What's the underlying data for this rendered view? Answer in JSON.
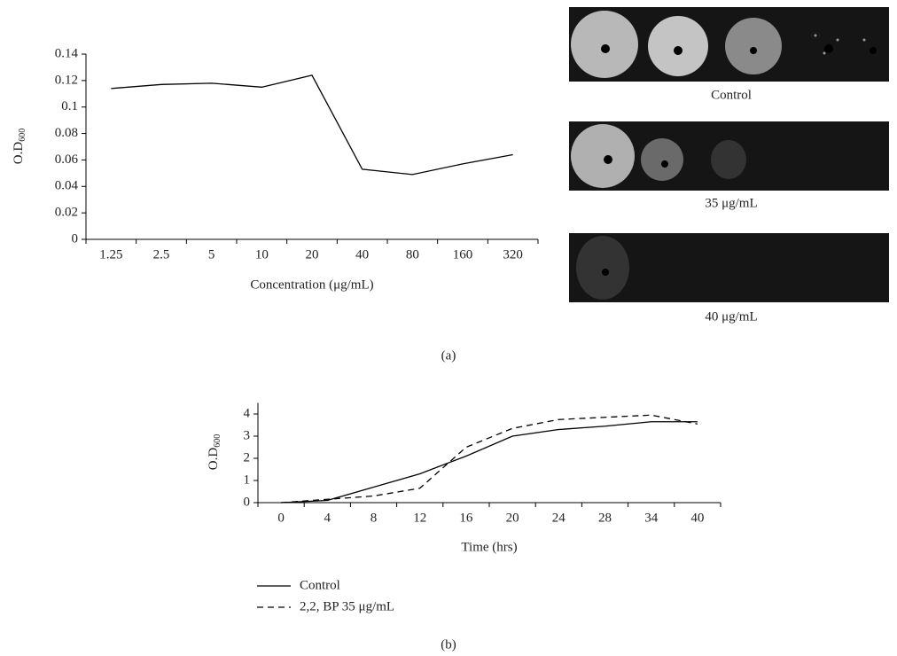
{
  "chart_data": [
    {
      "type": "line",
      "x_label": "Concentration (μg/mL)",
      "y_label": "O.D",
      "y_label_sub": "600",
      "categories": [
        "1.25",
        "2.5",
        "5",
        "10",
        "20",
        "40",
        "80",
        "160",
        "320"
      ],
      "values": [
        0.114,
        0.117,
        0.118,
        0.115,
        0.124,
        0.053,
        0.049,
        0.057,
        0.064
      ],
      "color": "#000000",
      "ylim": [
        0,
        0.14
      ],
      "yticks": [
        0,
        0.02,
        0.04,
        0.06,
        0.08,
        0.1,
        0.12,
        0.14
      ],
      "grid": false
    },
    {
      "type": "line",
      "x_label": "Time (hrs)",
      "y_label": "O.D",
      "y_label_sub": "600",
      "categories": [
        "0",
        "4",
        "8",
        "12",
        "16",
        "20",
        "24",
        "28",
        "34",
        "40"
      ],
      "series": [
        {
          "name": "Control",
          "color": "#000000",
          "dashed": false,
          "values": [
            0,
            0.1,
            0.7,
            1.3,
            2.1,
            3.0,
            3.3,
            3.45,
            3.65,
            3.65
          ]
        },
        {
          "name": "2,2, BP 35 μg/mL",
          "color": "#000000",
          "dashed": true,
          "values": [
            0,
            0.15,
            0.3,
            0.65,
            2.5,
            3.35,
            3.75,
            3.85,
            3.95,
            3.55
          ]
        }
      ],
      "ylim": [
        0,
        4.5
      ],
      "yticks": [
        0,
        1,
        2,
        3,
        4
      ],
      "grid": false,
      "legend": "bottom-left"
    }
  ],
  "images": [
    {
      "label": "Control"
    },
    {
      "label": "35 μg/mL"
    },
    {
      "label": "40 μg/mL"
    }
  ],
  "panels": [
    "(a)",
    "(b)"
  ]
}
